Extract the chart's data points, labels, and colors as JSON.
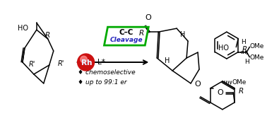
{
  "background_color": "#ffffff",
  "rh_circle_color_outer": "#cc1111",
  "rh_circle_color_inner": "#ee4444",
  "box_color": "#00aa00",
  "blue_text": "#2222bb",
  "bullet1": "♦ chemoselective",
  "bullet2": "♦ up to 99:1 er",
  "rh_label": "Rh",
  "lstar_label": "L*",
  "cc_line1": "C–C",
  "cc_line2": "Cleavage",
  "fig_width": 3.78,
  "fig_height": 1.81,
  "dpi": 100
}
